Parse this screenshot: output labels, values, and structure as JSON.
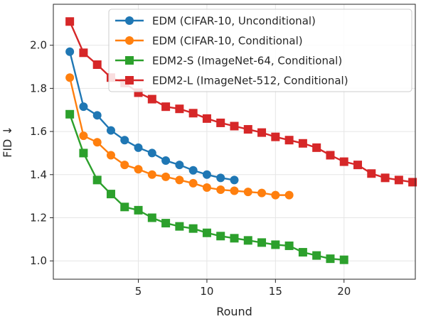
{
  "chart_data": {
    "type": "line",
    "xlabel": "Round",
    "ylabel": "FID ↓",
    "xlim": [
      -1.2,
      25.2
    ],
    "ylim": [
      0.915,
      2.19
    ],
    "xticks": [
      5,
      10,
      15,
      20
    ],
    "yticks": [
      1.0,
      1.2,
      1.4,
      1.6,
      1.8,
      2.0
    ],
    "ytick_labels": [
      "1.0",
      "1.2",
      "1.4",
      "1.6",
      "1.8",
      "2.0"
    ],
    "grid": true,
    "legend_position": "top-right",
    "series": [
      {
        "name": "EDM (CIFAR-10, Unconditional)",
        "color": "#1f77b4",
        "marker": "circle",
        "x": [
          0,
          1,
          2,
          3,
          4,
          5,
          6,
          7,
          8,
          9,
          10,
          11,
          12
        ],
        "y": [
          1.97,
          1.715,
          1.675,
          1.605,
          1.56,
          1.525,
          1.5,
          1.465,
          1.445,
          1.42,
          1.4,
          1.385,
          1.375
        ]
      },
      {
        "name": "EDM (CIFAR-10, Conditional)",
        "color": "#ff7f0e",
        "marker": "circle",
        "x": [
          0,
          1,
          2,
          3,
          4,
          5,
          6,
          7,
          8,
          9,
          10,
          11,
          12,
          13,
          14,
          15,
          16
        ],
        "y": [
          1.85,
          1.58,
          1.55,
          1.49,
          1.445,
          1.425,
          1.4,
          1.39,
          1.375,
          1.36,
          1.34,
          1.33,
          1.325,
          1.32,
          1.315,
          1.305,
          1.305
        ]
      },
      {
        "name": "EDM2-S (ImageNet-64, Conditional)",
        "color": "#2ca02c",
        "marker": "square",
        "x": [
          0,
          1,
          2,
          3,
          4,
          5,
          6,
          7,
          8,
          9,
          10,
          11,
          12,
          13,
          14,
          15,
          16,
          17,
          18,
          19,
          20
        ],
        "y": [
          1.68,
          1.5,
          1.375,
          1.31,
          1.25,
          1.235,
          1.2,
          1.175,
          1.16,
          1.15,
          1.13,
          1.115,
          1.105,
          1.095,
          1.085,
          1.075,
          1.07,
          1.04,
          1.025,
          1.01,
          1.005
        ]
      },
      {
        "name": "EDM2-L (ImageNet-512, Conditional)",
        "color": "#d62728",
        "marker": "square",
        "x": [
          0,
          1,
          2,
          3,
          4,
          5,
          6,
          7,
          8,
          9,
          10,
          11,
          12,
          13,
          14,
          15,
          16,
          17,
          18,
          19,
          20,
          21,
          22,
          23,
          24,
          25
        ],
        "y": [
          2.11,
          1.965,
          1.91,
          1.85,
          1.825,
          1.78,
          1.75,
          1.715,
          1.705,
          1.685,
          1.66,
          1.64,
          1.625,
          1.61,
          1.595,
          1.575,
          1.56,
          1.545,
          1.525,
          1.49,
          1.46,
          1.445,
          1.405,
          1.385,
          1.375,
          1.365
        ]
      }
    ]
  }
}
